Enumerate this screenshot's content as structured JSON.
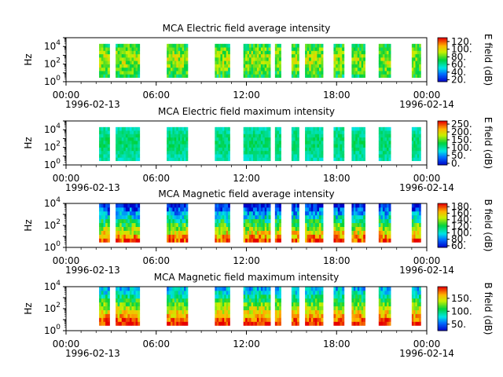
{
  "figure": {
    "x_tick_labels": [
      "00:00",
      "06:00",
      "12:00",
      "18:00",
      "00:00"
    ],
    "date_start": "1996-02-13",
    "date_end": "1996-02-14",
    "y_tick_labels": [
      "10^0",
      "10^2",
      "10^4"
    ]
  },
  "chart_data": [
    {
      "type": "heatmap",
      "title": "MCA  Electric field average intensity",
      "ylabel": "Hz",
      "colorbar_label": "E field (dB)",
      "colorbar_ticks": [
        "20.",
        "40.",
        "60.",
        "80.",
        "100.",
        "120."
      ],
      "colorbar_range": [
        15,
        130
      ],
      "x_range": [
        "1996-02-13T00:00",
        "1996-02-14T00:00"
      ],
      "y_scale": "log",
      "y_range": [
        1,
        100000
      ],
      "data_coverage_hours": [
        [
          2.2,
          2.9
        ],
        [
          3.3,
          4.9
        ],
        [
          6.7,
          8.1
        ],
        [
          9.9,
          10.9
        ],
        [
          11.8,
          13.6
        ],
        [
          13.9,
          14.3
        ],
        [
          15.0,
          15.5
        ],
        [
          15.9,
          17.1
        ],
        [
          17.8,
          18.5
        ],
        [
          19.0,
          19.9
        ],
        [
          20.8,
          21.6
        ],
        [
          23.0,
          23.6
        ]
      ],
      "freq_range_hz": [
        3,
        20000
      ],
      "colormap": "nipy-spectral-like",
      "intensity_range_db": [
        30,
        120
      ]
    },
    {
      "type": "heatmap",
      "title": "MCA  Electric field maximum intensity",
      "ylabel": "Hz",
      "colorbar_label": "E field (dB)",
      "colorbar_ticks": [
        "0.",
        "50.",
        "100.",
        "150.",
        "200.",
        "250."
      ],
      "colorbar_range": [
        -10,
        270
      ],
      "x_range": [
        "1996-02-13T00:00",
        "1996-02-14T00:00"
      ],
      "y_scale": "log",
      "y_range": [
        1,
        100000
      ],
      "data_coverage_hours": [
        [
          2.2,
          2.9
        ],
        [
          3.3,
          4.9
        ],
        [
          6.7,
          8.1
        ],
        [
          9.9,
          10.9
        ],
        [
          11.8,
          13.6
        ],
        [
          13.9,
          14.3
        ],
        [
          15.0,
          15.5
        ],
        [
          15.9,
          17.1
        ],
        [
          17.8,
          18.5
        ],
        [
          19.0,
          19.9
        ],
        [
          20.8,
          21.6
        ],
        [
          23.0,
          23.6
        ]
      ],
      "freq_range_hz": [
        3,
        20000
      ],
      "colormap": "nipy-spectral-like",
      "intensity_range_db": [
        50,
        150
      ]
    },
    {
      "type": "heatmap",
      "title": "MCA  Magnetic field average intensity",
      "ylabel": "Hz",
      "colorbar_label": "B field (dB)",
      "colorbar_ticks": [
        "60.",
        "80.",
        "100.",
        "120.",
        "140.",
        "160.",
        "180."
      ],
      "colorbar_range": [
        55,
        190
      ],
      "x_range": [
        "1996-02-13T00:00",
        "1996-02-14T00:00"
      ],
      "y_scale": "log",
      "y_range": [
        1,
        10000
      ],
      "data_coverage_hours": [
        [
          2.2,
          2.9
        ],
        [
          3.3,
          4.9
        ],
        [
          6.7,
          8.1
        ],
        [
          9.9,
          10.9
        ],
        [
          11.8,
          13.6
        ],
        [
          13.9,
          14.3
        ],
        [
          15.0,
          15.5
        ],
        [
          15.9,
          17.1
        ],
        [
          17.8,
          18.5
        ],
        [
          19.0,
          19.9
        ],
        [
          20.8,
          21.6
        ],
        [
          23.0,
          23.6
        ]
      ],
      "freq_range_hz": [
        3,
        10000
      ],
      "colormap": "nipy-spectral-like",
      "intensity_range_db": [
        60,
        180
      ]
    },
    {
      "type": "heatmap",
      "title": "MCA  Magnetic field maximum intensity",
      "ylabel": "Hz",
      "colorbar_label": "B field (dB)",
      "colorbar_ticks": [
        "50.",
        "100.",
        "150."
      ],
      "colorbar_range": [
        25,
        195
      ],
      "x_range": [
        "1996-02-13T00:00",
        "1996-02-14T00:00"
      ],
      "y_scale": "log",
      "y_range": [
        1,
        10000
      ],
      "data_coverage_hours": [
        [
          2.2,
          2.9
        ],
        [
          3.3,
          4.9
        ],
        [
          6.7,
          8.1
        ],
        [
          9.9,
          10.9
        ],
        [
          11.8,
          13.6
        ],
        [
          13.9,
          14.3
        ],
        [
          15.0,
          15.5
        ],
        [
          15.9,
          17.1
        ],
        [
          17.8,
          18.5
        ],
        [
          19.0,
          19.9
        ],
        [
          20.8,
          21.6
        ],
        [
          23.0,
          23.6
        ]
      ],
      "freq_range_hz": [
        3,
        10000
      ],
      "colormap": "nipy-spectral-like",
      "intensity_range_db": [
        70,
        190
      ]
    }
  ]
}
